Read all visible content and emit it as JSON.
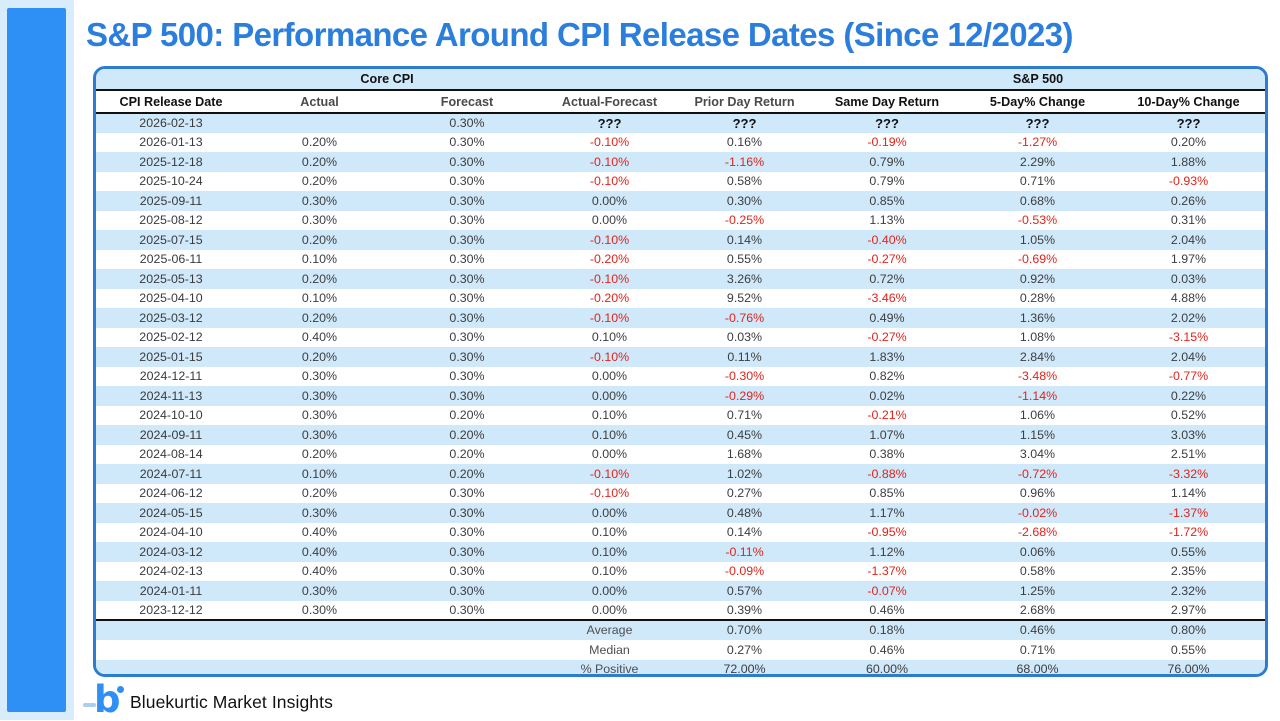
{
  "page_title": "S&P 500: Performance Around CPI Release Dates (Since 12/2023)",
  "footer": {
    "logo_letter": "b",
    "brand_name": "Bluekurtic Market Insights"
  },
  "colors": {
    "title_blue": "#2b7edb",
    "accent_bar_blue": "#2e90f5",
    "left_strip_light_blue": "#d8ecfc",
    "table_border_blue": "#2e7ccf",
    "row_stripe_blue": "#cfe8fa",
    "negative_red": "#e0241b",
    "text_dark": "#3d3d3d",
    "separator_black": "#111111"
  },
  "chart_data": {
    "type": "table",
    "title": "S&P 500: Performance Around CPI Release Dates (Since 12/2023)",
    "group_headers": [
      {
        "label": "Core CPI",
        "colspan": 4
      },
      {
        "label": "",
        "colspan": 1
      },
      {
        "label": "S&P 500",
        "colspan": 3
      }
    ],
    "columns": [
      "CPI Release Date",
      "Actual",
      "Forecast",
      "Actual-Forecast",
      "Prior Day Return",
      "Same Day Return",
      "5-Day% Change",
      "10-Day% Change"
    ],
    "rows": [
      [
        "2026-02-13",
        "",
        "0.30%",
        "???",
        "???",
        "???",
        "???",
        "???"
      ],
      [
        "2026-01-13",
        "0.20%",
        "0.30%",
        "-0.10%",
        "0.16%",
        "-0.19%",
        "-1.27%",
        "0.20%"
      ],
      [
        "2025-12-18",
        "0.20%",
        "0.30%",
        "-0.10%",
        "-1.16%",
        "0.79%",
        "2.29%",
        "1.88%"
      ],
      [
        "2025-10-24",
        "0.20%",
        "0.30%",
        "-0.10%",
        "0.58%",
        "0.79%",
        "0.71%",
        "-0.93%"
      ],
      [
        "2025-09-11",
        "0.30%",
        "0.30%",
        "0.00%",
        "0.30%",
        "0.85%",
        "0.68%",
        "0.26%"
      ],
      [
        "2025-08-12",
        "0.30%",
        "0.30%",
        "0.00%",
        "-0.25%",
        "1.13%",
        "-0.53%",
        "0.31%"
      ],
      [
        "2025-07-15",
        "0.20%",
        "0.30%",
        "-0.10%",
        "0.14%",
        "-0.40%",
        "1.05%",
        "2.04%"
      ],
      [
        "2025-06-11",
        "0.10%",
        "0.30%",
        "-0.20%",
        "0.55%",
        "-0.27%",
        "-0.69%",
        "1.97%"
      ],
      [
        "2025-05-13",
        "0.20%",
        "0.30%",
        "-0.10%",
        "3.26%",
        "0.72%",
        "0.92%",
        "0.03%"
      ],
      [
        "2025-04-10",
        "0.10%",
        "0.30%",
        "-0.20%",
        "9.52%",
        "-3.46%",
        "0.28%",
        "4.88%"
      ],
      [
        "2025-03-12",
        "0.20%",
        "0.30%",
        "-0.10%",
        "-0.76%",
        "0.49%",
        "1.36%",
        "2.02%"
      ],
      [
        "2025-02-12",
        "0.40%",
        "0.30%",
        "0.10%",
        "0.03%",
        "-0.27%",
        "1.08%",
        "-3.15%"
      ],
      [
        "2025-01-15",
        "0.20%",
        "0.30%",
        "-0.10%",
        "0.11%",
        "1.83%",
        "2.84%",
        "2.04%"
      ],
      [
        "2024-12-11",
        "0.30%",
        "0.30%",
        "0.00%",
        "-0.30%",
        "0.82%",
        "-3.48%",
        "-0.77%"
      ],
      [
        "2024-11-13",
        "0.30%",
        "0.30%",
        "0.00%",
        "-0.29%",
        "0.02%",
        "-1.14%",
        "0.22%"
      ],
      [
        "2024-10-10",
        "0.30%",
        "0.20%",
        "0.10%",
        "0.71%",
        "-0.21%",
        "1.06%",
        "0.52%"
      ],
      [
        "2024-09-11",
        "0.30%",
        "0.20%",
        "0.10%",
        "0.45%",
        "1.07%",
        "1.15%",
        "3.03%"
      ],
      [
        "2024-08-14",
        "0.20%",
        "0.20%",
        "0.00%",
        "1.68%",
        "0.38%",
        "3.04%",
        "2.51%"
      ],
      [
        "2024-07-11",
        "0.10%",
        "0.20%",
        "-0.10%",
        "1.02%",
        "-0.88%",
        "-0.72%",
        "-3.32%"
      ],
      [
        "2024-06-12",
        "0.20%",
        "0.30%",
        "-0.10%",
        "0.27%",
        "0.85%",
        "0.96%",
        "1.14%"
      ],
      [
        "2024-05-15",
        "0.30%",
        "0.30%",
        "0.00%",
        "0.48%",
        "1.17%",
        "-0.02%",
        "-1.37%"
      ],
      [
        "2024-04-10",
        "0.40%",
        "0.30%",
        "0.10%",
        "0.14%",
        "-0.95%",
        "-2.68%",
        "-1.72%"
      ],
      [
        "2024-03-12",
        "0.40%",
        "0.30%",
        "0.10%",
        "-0.11%",
        "1.12%",
        "0.06%",
        "0.55%"
      ],
      [
        "2024-02-13",
        "0.40%",
        "0.30%",
        "0.10%",
        "-0.09%",
        "-1.37%",
        "0.58%",
        "2.35%"
      ],
      [
        "2024-01-11",
        "0.30%",
        "0.30%",
        "0.00%",
        "0.57%",
        "-0.07%",
        "1.25%",
        "2.32%"
      ],
      [
        "2023-12-12",
        "0.30%",
        "0.30%",
        "0.00%",
        "0.39%",
        "0.46%",
        "2.68%",
        "2.97%"
      ]
    ],
    "summary_rows": [
      [
        "",
        "",
        "",
        "Average",
        "0.70%",
        "0.18%",
        "0.46%",
        "0.80%"
      ],
      [
        "",
        "",
        "",
        "Median",
        "0.27%",
        "0.46%",
        "0.71%",
        "0.55%"
      ],
      [
        "",
        "",
        "",
        "% Positive",
        "72.00%",
        "60.00%",
        "68.00%",
        "76.00%"
      ]
    ],
    "layout_hints": {
      "striped_rows": true,
      "negative_values_red": true,
      "unknown_values": "???",
      "dark_header_columns": [
        0,
        5,
        6,
        7
      ]
    }
  }
}
